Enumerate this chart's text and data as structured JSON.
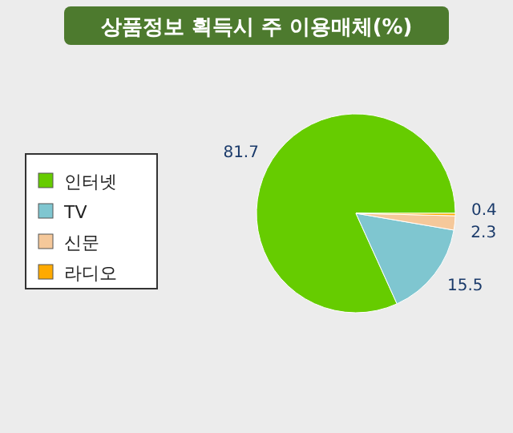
{
  "chart_data": {
    "type": "pie",
    "title": "상품정보 획득시 주 이용매체(%)",
    "categories": [
      "인터넷",
      "TV",
      "신문",
      "라디오"
    ],
    "values": [
      81.7,
      15.5,
      2.3,
      0.4
    ],
    "colors": [
      "#66cc00",
      "#7fc6d0",
      "#f5c89a",
      "#ffaa00"
    ],
    "data_labels": true,
    "legend": "left"
  }
}
